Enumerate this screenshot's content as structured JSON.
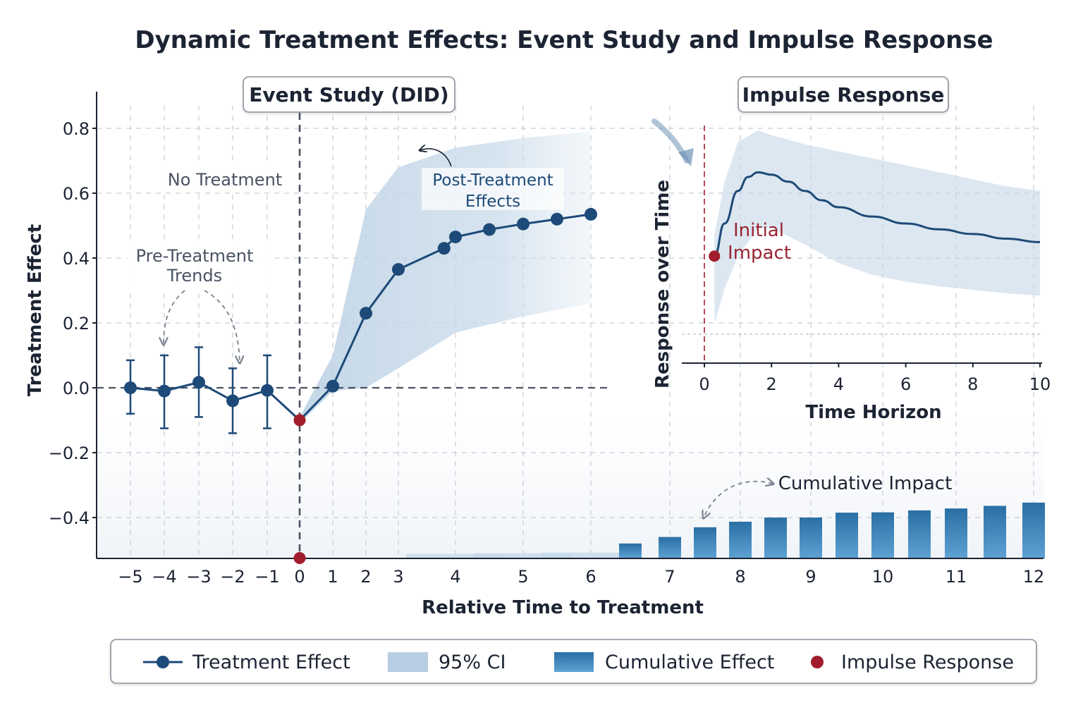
{
  "title": "Dynamic Treatment Effects: Event Study and Impulse Response",
  "colors": {
    "line": "#1d4a78",
    "ci": "#c4d7e8",
    "bar": "#2f78ad",
    "impulse": "#a11d2d",
    "text": "#1c2433"
  },
  "chart_data": [
    {
      "type": "line",
      "panel": "Event Study (DID)",
      "title": "Event Study (DID)",
      "xlabel": "Relative Time to Treatment",
      "ylabel": "Treatment Effect",
      "ylim": [
        -0.52,
        0.9
      ],
      "y_ticks": [
        0.8,
        0.6,
        0.4,
        0.2,
        0.0,
        -0.2,
        -0.4
      ],
      "y_tick_labels": [
        "0.8",
        "0.6",
        "0.4",
        "0.2",
        "0.0",
        "−0.2",
        "−0.4"
      ],
      "x_ticks": [
        -5,
        -4,
        -3,
        -2,
        -1,
        0,
        1,
        2,
        3,
        4,
        5,
        6,
        7,
        8,
        9,
        10,
        11,
        12
      ],
      "x_tick_labels": [
        "−5",
        "−4",
        "−3",
        "−2",
        "−1",
        "0",
        "1",
        "2",
        "3",
        "4",
        "5",
        "6",
        "7",
        "8",
        "9",
        "10",
        "11",
        "12"
      ],
      "series": [
        {
          "name": "Treatment Effect",
          "points": [
            {
              "x": -5,
              "y": 0.0,
              "lo": -0.08,
              "hi": 0.085
            },
            {
              "x": -4,
              "y": -0.01,
              "lo": -0.125,
              "hi": 0.1
            },
            {
              "x": -3,
              "y": 0.017,
              "lo": -0.09,
              "hi": 0.125
            },
            {
              "x": -2,
              "y": -0.04,
              "lo": -0.14,
              "hi": 0.06
            },
            {
              "x": -1,
              "y": -0.008,
              "lo": -0.125,
              "hi": 0.1
            },
            {
              "x": 0,
              "y": -0.1
            },
            {
              "x": 1,
              "y": 0.005
            },
            {
              "x": 2,
              "y": 0.23
            },
            {
              "x": 3,
              "y": 0.365
            },
            {
              "x": 3.8,
              "y": 0.43
            },
            {
              "x": 4,
              "y": 0.465
            },
            {
              "x": 4.5,
              "y": 0.488
            },
            {
              "x": 5,
              "y": 0.505
            },
            {
              "x": 5.5,
              "y": 0.52
            },
            {
              "x": 6,
              "y": 0.535
            }
          ]
        },
        {
          "name": "95% CI",
          "band": [
            {
              "x": -0.2,
              "lo": -0.09,
              "hi": -0.09
            },
            {
              "x": 0,
              "lo": -0.11,
              "hi": -0.09
            },
            {
              "x": 1,
              "lo": -0.01,
              "hi": 0.1
            },
            {
              "x": 2,
              "lo": 0.0,
              "hi": 0.55
            },
            {
              "x": 3,
              "lo": 0.06,
              "hi": 0.68
            },
            {
              "x": 4,
              "lo": 0.17,
              "hi": 0.74
            },
            {
              "x": 5,
              "lo": 0.22,
              "hi": 0.77
            },
            {
              "x": 6,
              "lo": 0.26,
              "hi": 0.79
            }
          ]
        }
      ],
      "impulse_points": [
        {
          "x": 0,
          "y": -0.1
        },
        {
          "x": 0,
          "y": -0.525
        }
      ],
      "annotations": [
        {
          "text": "No Treatment"
        },
        {
          "text": "Pre-Treatment"
        },
        {
          "text": "Trends"
        },
        {
          "text": "Post-Treatment"
        },
        {
          "text": "Effects"
        },
        {
          "text": "Cumulative Impact"
        }
      ]
    },
    {
      "type": "bar",
      "panel": "Cumulative Effect",
      "name": "Cumulative Effect",
      "ylim": [
        -0.52,
        0.9
      ],
      "categories": [
        4,
        5,
        6,
        6.5,
        7,
        7.5,
        8,
        8.5,
        9,
        9.5,
        10,
        10.5,
        11,
        11.5,
        12
      ],
      "values": [
        -0.512,
        -0.51,
        -0.508,
        -0.48,
        -0.46,
        -0.43,
        -0.413,
        -0.4,
        -0.4,
        -0.385,
        -0.384,
        -0.378,
        -0.372,
        -0.364,
        -0.354
      ]
    },
    {
      "type": "line",
      "panel": "Impulse Response",
      "title": "Impulse Response",
      "xlabel": "Time Horizon",
      "ylabel": "Response over Time",
      "xlim": [
        -0.7,
        10.3
      ],
      "x_ticks": [
        0,
        2,
        4,
        6,
        8,
        10
      ],
      "x_tick_labels": [
        "0",
        "2",
        "4",
        "6",
        "8",
        "10"
      ],
      "series": [
        {
          "name": "Impulse Response",
          "x": [
            0.3,
            0.6,
            1.0,
            1.3,
            1.6,
            2.0,
            2.5,
            3.0,
            3.5,
            4.0,
            5.0,
            6.0,
            7.0,
            8.0,
            9.0,
            10.0
          ],
          "y": [
            0.46,
            0.6,
            0.74,
            0.8,
            0.82,
            0.81,
            0.78,
            0.74,
            0.7,
            0.67,
            0.63,
            0.6,
            0.575,
            0.555,
            0.535,
            0.52
          ]
        },
        {
          "name": "Band",
          "x": [
            0.3,
            0.6,
            1.0,
            1.6,
            2.0,
            3.0,
            4.0,
            5.0,
            6.0,
            7.0,
            8.0,
            9.0,
            10.0
          ],
          "lo": [
            0.17,
            0.32,
            0.46,
            0.58,
            0.58,
            0.51,
            0.43,
            0.38,
            0.35,
            0.33,
            0.315,
            0.3,
            0.29
          ],
          "hi": [
            0.55,
            0.78,
            0.95,
            1.0,
            0.98,
            0.94,
            0.91,
            0.88,
            0.85,
            0.82,
            0.79,
            0.76,
            0.74
          ]
        }
      ],
      "initial_point": {
        "x": 0.3,
        "y": 0.46,
        "label_line1": "Initial",
        "label_line2": "Impact"
      }
    }
  ],
  "legend": [
    {
      "label": "Treatment Effect",
      "icon": "line-marker-icon"
    },
    {
      "label": "95% CI",
      "icon": "ci-swatch-icon"
    },
    {
      "label": "Cumulative Effect",
      "icon": "bar-swatch-icon"
    },
    {
      "label": "Impulse Response",
      "icon": "red-dot-icon"
    }
  ]
}
